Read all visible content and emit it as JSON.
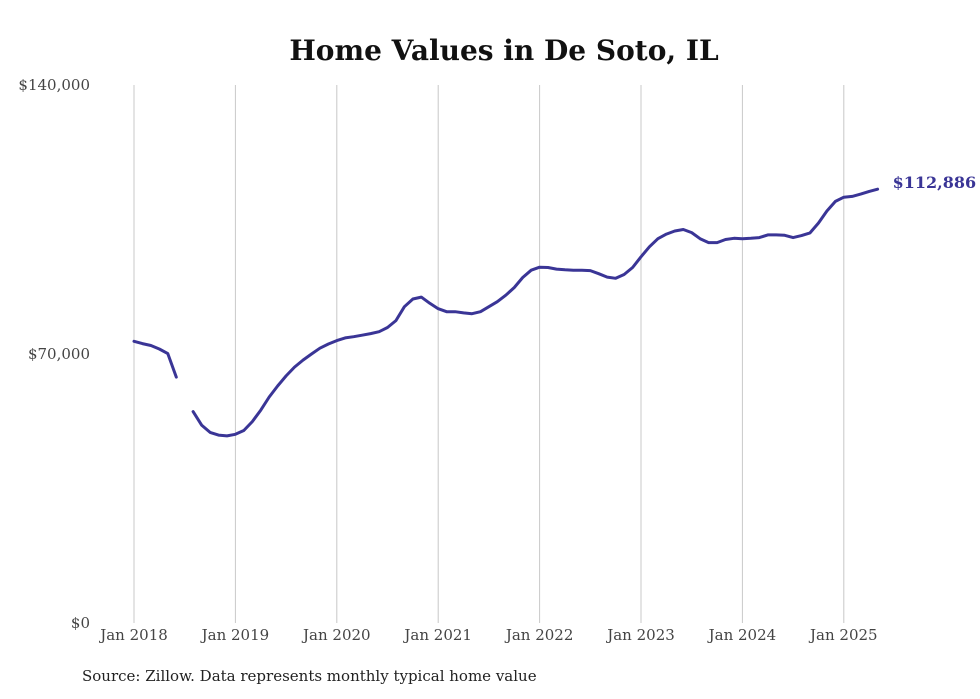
{
  "chart_data": {
    "type": "line",
    "title": "Home Values in De Soto, IL",
    "xlabel": "",
    "ylabel": "",
    "ylim": [
      0,
      140000
    ],
    "y_ticks": [
      {
        "value": 0,
        "label": "$0"
      },
      {
        "value": 70000,
        "label": "$70,000"
      },
      {
        "value": 140000,
        "label": "$140,000"
      }
    ],
    "x_ticks": [
      {
        "value": 2018.0,
        "label": "Jan 2018"
      },
      {
        "value": 2019.0,
        "label": "Jan 2019"
      },
      {
        "value": 2020.0,
        "label": "Jan 2020"
      },
      {
        "value": 2021.0,
        "label": "Jan 2021"
      },
      {
        "value": 2022.0,
        "label": "Jan 2022"
      },
      {
        "value": 2023.0,
        "label": "Jan 2023"
      },
      {
        "value": 2024.0,
        "label": "Jan 2024"
      },
      {
        "value": 2025.0,
        "label": "Jan 2025"
      }
    ],
    "grid": "vertical",
    "line_color": "#3a3596",
    "end_label": "$112,886",
    "series": [
      {
        "segments": [
          {
            "x": [
              "2018-01",
              "2018-02",
              "2018-03",
              "2018-04",
              "2018-05",
              "2018-06"
            ],
            "y": [
              73300,
              72700,
              72200,
              71300,
              70100,
              64000
            ]
          },
          {
            "x": [
              "2018-08",
              "2018-09",
              "2018-10",
              "2018-11",
              "2018-12",
              "2019-01",
              "2019-02",
              "2019-03",
              "2019-04",
              "2019-05",
              "2019-06",
              "2019-07",
              "2019-08",
              "2019-09",
              "2019-10",
              "2019-11",
              "2019-12",
              "2020-01",
              "2020-02",
              "2020-03",
              "2020-04",
              "2020-05",
              "2020-06",
              "2020-07",
              "2020-08",
              "2020-09",
              "2020-10",
              "2020-11",
              "2020-12",
              "2021-01",
              "2021-02",
              "2021-03",
              "2021-04",
              "2021-05",
              "2021-06",
              "2021-07",
              "2021-08",
              "2021-09",
              "2021-10",
              "2021-11",
              "2021-12",
              "2022-01",
              "2022-02",
              "2022-03",
              "2022-04",
              "2022-05",
              "2022-06",
              "2022-07",
              "2022-08",
              "2022-09",
              "2022-10",
              "2022-11",
              "2022-12",
              "2023-01",
              "2023-02",
              "2023-03",
              "2023-04",
              "2023-05",
              "2023-06",
              "2023-07",
              "2023-08",
              "2023-09",
              "2023-10",
              "2023-11",
              "2023-12",
              "2024-01",
              "2024-02",
              "2024-03",
              "2024-04",
              "2024-05",
              "2024-06",
              "2024-07",
              "2024-08",
              "2024-09",
              "2024-10",
              "2024-11",
              "2024-12",
              "2025-01",
              "2025-02",
              "2025-03",
              "2025-04",
              "2025-05"
            ],
            "y": [
              55000,
              51500,
              49600,
              48900,
              48700,
              49100,
              50100,
              52400,
              55400,
              58800,
              61700,
              64300,
              66600,
              68400,
              70000,
              71500,
              72600,
              73500,
              74200,
              74500,
              74900,
              75300,
              75800,
              76900,
              78700,
              82300,
              84300,
              84800,
              83200,
              81800,
              81000,
              81000,
              80700,
              80500,
              81000,
              82300,
              83600,
              85300,
              87300,
              89900,
              91800,
              92600,
              92500,
              92100,
              91900,
              91800,
              91800,
              91700,
              90900,
              90000,
              89700,
              90700,
              92500,
              95300,
              97900,
              100000,
              101200,
              102000,
              102400,
              101600,
              100000,
              99000,
              99000,
              99800,
              100100,
              100000,
              100100,
              100300,
              101000,
              101000,
              100900,
              100300,
              100800,
              101500,
              104100,
              107200,
              109700,
              110800,
              111000,
              111600,
              112300,
              112886
            ]
          }
        ]
      }
    ]
  },
  "footer": {
    "source": "Source: Zillow. Data represents monthly typical home value"
  }
}
